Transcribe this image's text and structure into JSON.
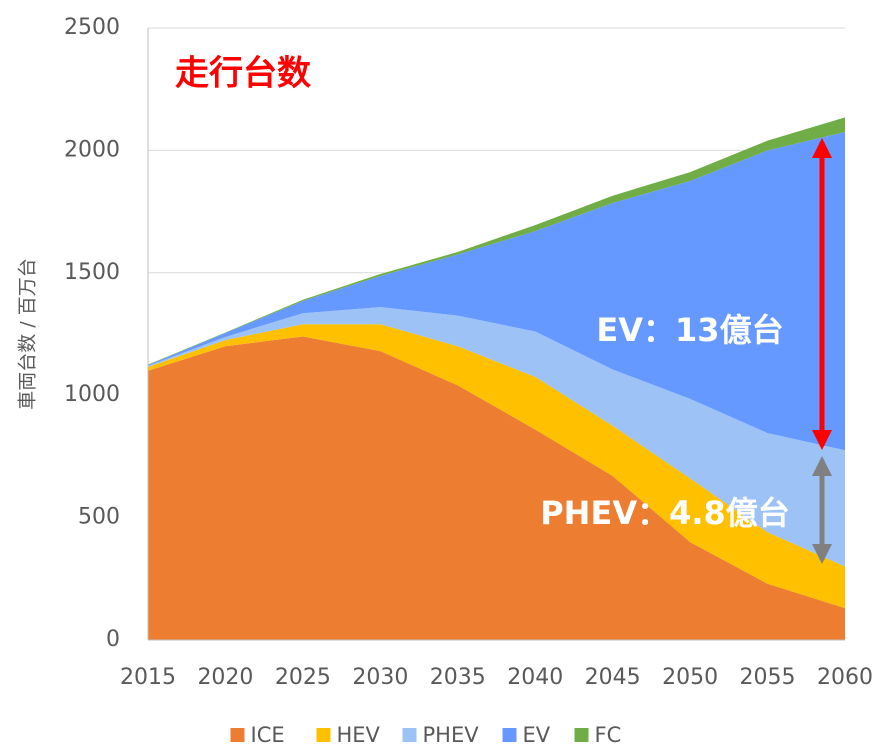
{
  "chart_data": {
    "type": "stacked_area",
    "title": "走行台数",
    "y_label": "車両台数 / 百万台",
    "annotations": [
      "EV：13億台",
      "PHEV：4.8億台"
    ],
    "x": [
      2015,
      2020,
      2025,
      2030,
      2035,
      2040,
      2045,
      2050,
      2055,
      2060
    ],
    "xlim": [
      2015,
      2060
    ],
    "xticks": [
      2015,
      2020,
      2025,
      2030,
      2035,
      2040,
      2045,
      2050,
      2055,
      2060
    ],
    "ylim": [
      0,
      2500
    ],
    "yticks": [
      0,
      500,
      1000,
      1500,
      2000,
      2500
    ],
    "grid": true,
    "legend": "bottom",
    "series": [
      {
        "name": "ICE",
        "color": "#ed7d31",
        "values": [
          1100,
          1200,
          1240,
          1180,
          1040,
          860,
          670,
          400,
          230,
          130
        ]
      },
      {
        "name": "HEV",
        "color": "#ffc000",
        "values": [
          15,
          25,
          50,
          110,
          160,
          215,
          205,
          260,
          210,
          170
        ]
      },
      {
        "name": "PHEV",
        "color": "#9dc3f6",
        "values": [
          5,
          13,
          45,
          70,
          125,
          185,
          230,
          325,
          405,
          475
        ]
      },
      {
        "name": "EV",
        "color": "#6699ff",
        "values": [
          3,
          16,
          50,
          127,
          250,
          410,
          680,
          890,
          1155,
          1300
        ]
      },
      {
        "name": "FC",
        "color": "#70ad47",
        "values": [
          2,
          2,
          5,
          8,
          10,
          25,
          30,
          36,
          40,
          60
        ]
      }
    ]
  }
}
